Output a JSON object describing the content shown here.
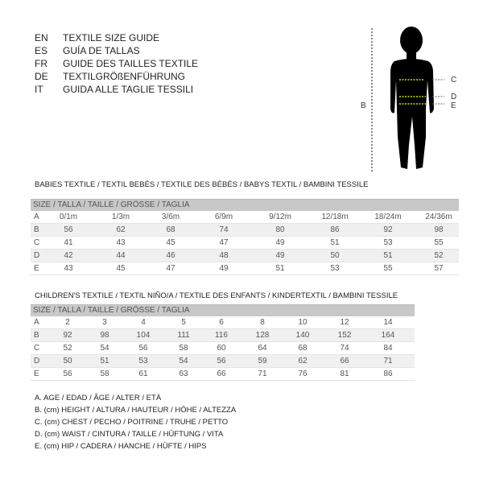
{
  "languages": [
    {
      "code": "EN",
      "text": "TEXTILE SIZE GUIDE"
    },
    {
      "code": "ES",
      "text": "GUÍA DE TALLAS"
    },
    {
      "code": "FR",
      "text": "GUIDE DES TAILLES TEXTILE"
    },
    {
      "code": "DE",
      "text": "TEXTILGRÖßENFÜHRUNG"
    },
    {
      "code": "IT",
      "text": "GUIDA ALLE TAGLIE TESSILI"
    }
  ],
  "figure": {
    "labels": {
      "b": "B",
      "c": "C",
      "d": "D",
      "e": "E"
    },
    "accent": "#c8e000"
  },
  "babies": {
    "title": "BABIES TEXTILE / TEXTIL BEBÉS / TEXTILE DES BÉBÉS / BABYS TEXTIL  / BAMBINI TESSILE",
    "header": "SIZE / TALLA / TAILLE / GRÖSSE / TAGLIA",
    "rows": [
      [
        "A",
        "0/1m",
        "1/3m",
        "3/6m",
        "6/9m",
        "9/12m",
        "12/18m",
        "18/24m",
        "24/36m"
      ],
      [
        "B",
        "56",
        "62",
        "68",
        "74",
        "80",
        "86",
        "92",
        "98"
      ],
      [
        "C",
        "41",
        "43",
        "45",
        "47",
        "49",
        "51",
        "53",
        "55"
      ],
      [
        "D",
        "42",
        "44",
        "46",
        "48",
        "49",
        "50",
        "51",
        "52"
      ],
      [
        "E",
        "43",
        "45",
        "47",
        "49",
        "51",
        "53",
        "55",
        "57"
      ]
    ]
  },
  "children": {
    "title": "CHILDREN'S TEXTILE / TEXTIL NIÑO/A / TEXTILE DES ENFANTS / KINDERTEXTIL / BAMBINI TESSILE",
    "header": "SIZE / TALLA / TAILLE / GRÖSSE / TAGLIA",
    "rows": [
      [
        "A",
        "2",
        "3",
        "4",
        "5",
        "6",
        "8",
        "10",
        "12",
        "14"
      ],
      [
        "B",
        "92",
        "98",
        "104",
        "111",
        "116",
        "128",
        "140",
        "152",
        "164"
      ],
      [
        "C",
        "52",
        "54",
        "56",
        "58",
        "60",
        "64",
        "68",
        "74",
        "84"
      ],
      [
        "D",
        "50",
        "51",
        "53",
        "54",
        "56",
        "59",
        "62",
        "66",
        "71"
      ],
      [
        "E",
        "56",
        "58",
        "61",
        "63",
        "66",
        "71",
        "76",
        "81",
        "86"
      ]
    ]
  },
  "legend": [
    "A. AGE / EDAD / ÂGE / ALTER / ETÀ",
    "B. (cm) HEIGHT / ALTURA / HAUTEUR / HÖHE / ALTEZZA",
    "C. (cm) CHEST / PECHO / POITRINE / TRUHE / PETTO",
    "D. (cm) WAIST / CINTURA / TAILLE / HÜFTUNG / VITA",
    "E. (cm) HIP / CADERA / HANCHE / HÜFTE / HIPS"
  ]
}
